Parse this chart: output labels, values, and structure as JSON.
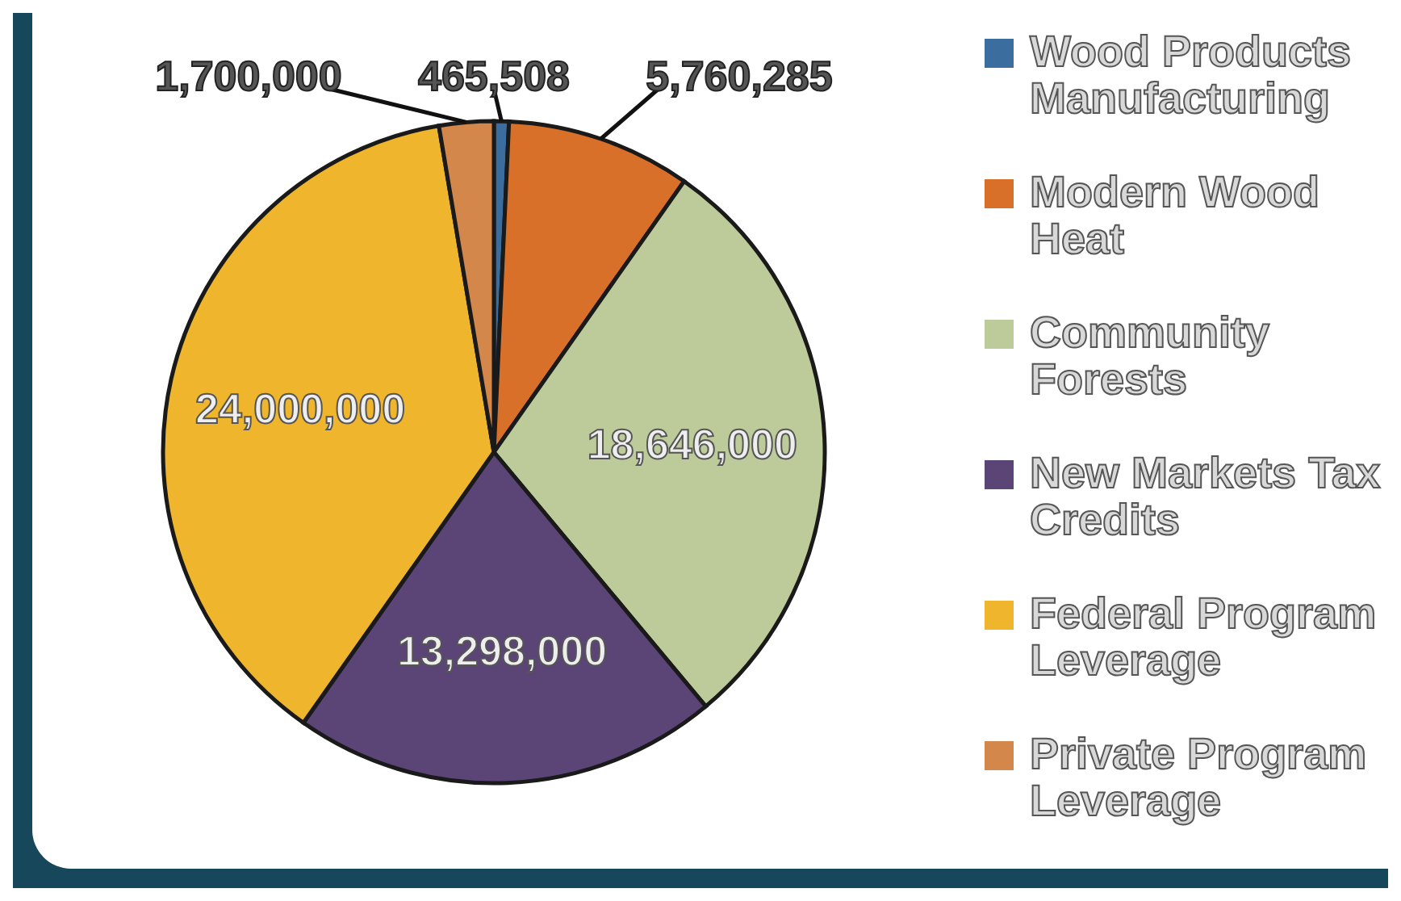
{
  "chart_data": {
    "type": "pie",
    "categories": [
      "Wood Products Manufacturing",
      "Modern Wood Heat",
      "Community Forests",
      "New Markets Tax Credits",
      "Federal Program Leverage",
      "Private Program Leverage"
    ],
    "values": [
      465508,
      5760285,
      18646000,
      13298000,
      24000000,
      1700000
    ],
    "colors": [
      "#3b6e9e",
      "#d9702a",
      "#bdcb9b",
      "#5b4577",
      "#efb52c",
      "#d4874a"
    ],
    "value_labels": [
      "465,508",
      "5,760,285",
      "18,646,000",
      "13,298,000",
      "24,000,000",
      "1,700,000"
    ],
    "legend": "right"
  }
}
